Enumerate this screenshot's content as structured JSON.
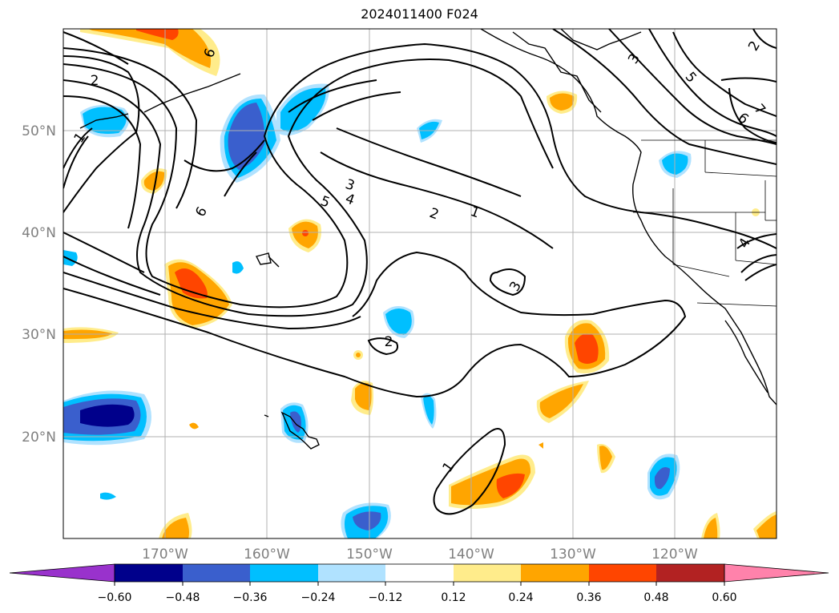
{
  "title": "2024011400 F024",
  "lat_ticks": [
    "50°N",
    "40°N",
    "30°N",
    "20°N"
  ],
  "lon_ticks": [
    "170°W",
    "160°W",
    "150°W",
    "140°W",
    "130°W",
    "120°W"
  ],
  "colorbar": {
    "labels": [
      "−0.60",
      "−0.48",
      "−0.36",
      "−0.24",
      "−0.12",
      "0.12",
      "0.24",
      "0.36",
      "0.48",
      "0.60"
    ],
    "colors": [
      "#9932cc",
      "#00008b",
      "#3a5fcd",
      "#00bfff",
      "#b0e2ff",
      "#ffffff",
      "#ffec8b",
      "#ffa500",
      "#ff4500",
      "#b22222",
      "#ff82ab"
    ]
  },
  "contour_labels": [
    "1",
    "2",
    "3",
    "4",
    "5",
    "6",
    "7"
  ]
}
